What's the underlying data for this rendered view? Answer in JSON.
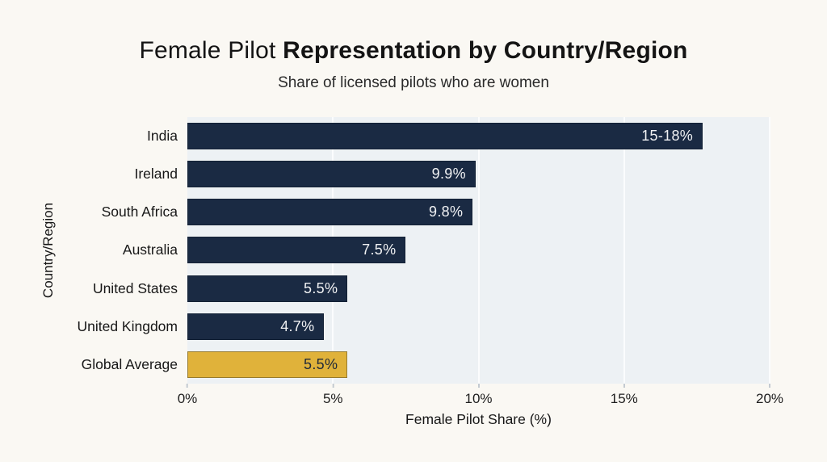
{
  "page": {
    "background": "#FAF8F3"
  },
  "chart_data": {
    "type": "bar",
    "orientation": "horizontal",
    "title": {
      "regular": "Female Pilot ",
      "bold": "Representation by Country/Region"
    },
    "subtitle": "Share of licensed pilots who are women",
    "xlabel": "Female Pilot Share (%)",
    "ylabel": "Country/Region",
    "xlim": [
      0,
      20
    ],
    "grid": "vertical-every-5pct",
    "legend": "none",
    "x_ticks": [
      {
        "label": "0%",
        "value": 0
      },
      {
        "label": "5%",
        "value": 5
      },
      {
        "label": "10%",
        "value": 10
      },
      {
        "label": "15%",
        "value": 15
      },
      {
        "label": "20%",
        "value": 20
      }
    ],
    "categories": [
      "India",
      "Ireland",
      "South Africa",
      "Australia",
      "United States",
      "United Kingdom",
      "Global Average"
    ],
    "bars": [
      {
        "category": "India",
        "plotted_value": 17.7,
        "label": "15-18%",
        "highlight": false
      },
      {
        "category": "Ireland",
        "plotted_value": 9.9,
        "label": "9.9%",
        "highlight": false
      },
      {
        "category": "South Africa",
        "plotted_value": 9.8,
        "label": "9.8%",
        "highlight": false
      },
      {
        "category": "Australia",
        "plotted_value": 7.5,
        "label": "7.5%",
        "highlight": false
      },
      {
        "category": "United States",
        "plotted_value": 5.5,
        "label": "5.5%",
        "highlight": false
      },
      {
        "category": "United Kingdom",
        "plotted_value": 4.7,
        "label": "4.7%",
        "highlight": false
      },
      {
        "category": "Global Average",
        "plotted_value": 5.5,
        "label": "5.5%",
        "highlight": true
      }
    ],
    "colors": {
      "bar": "#1A2A43",
      "highlight_bar": "#E0B23A",
      "plot_bg": "#EDF1F4",
      "page_bg": "#FAF8F3",
      "gridline": "#FBFCFD",
      "value_on_bar": "#F0F1F3",
      "value_on_highlight": "#222B39",
      "text": "#171717"
    }
  }
}
